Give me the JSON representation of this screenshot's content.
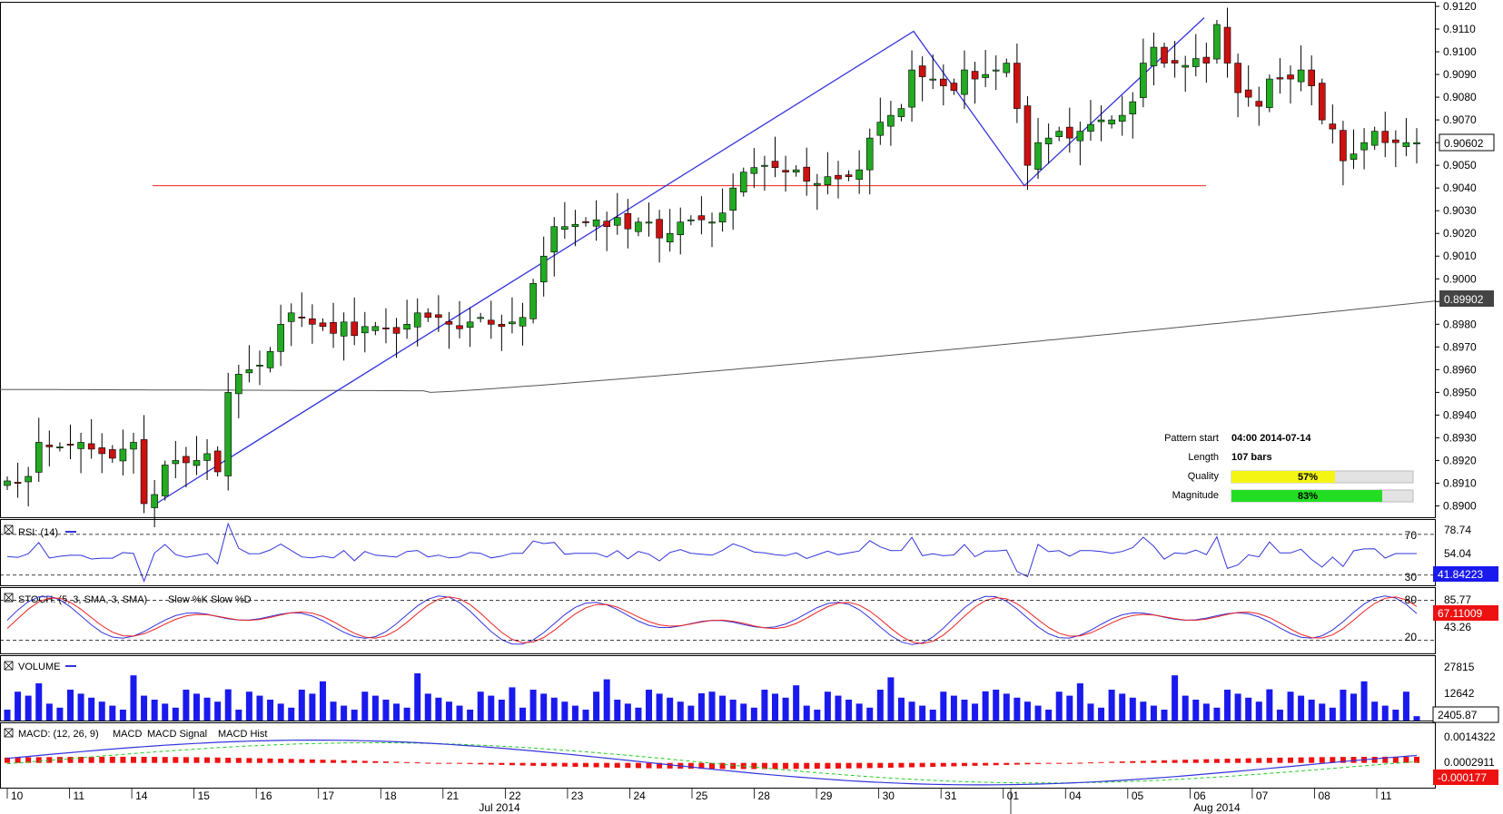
{
  "chart_data": {
    "type": "candlestick",
    "price_panel": {
      "ylim": [
        0.8895,
        0.9122
      ],
      "y_ticks": [
        "0.9120",
        "0.9110",
        "0.9100",
        "0.9090",
        "0.9080",
        "0.9070",
        "0.9060",
        "0.9050",
        "0.9040",
        "0.9030",
        "0.9020",
        "0.9010",
        "0.9000",
        "0.8990",
        "0.8980",
        "0.8970",
        "0.8960",
        "0.8950",
        "0.8940",
        "0.8930",
        "0.8920",
        "0.8910",
        "0.8900"
      ],
      "current_price_label": "0.90602",
      "current_price": 0.90602,
      "ma_label": "0.89902",
      "ma_value": 0.89902,
      "support_level": 0.9041,
      "colors": {
        "up": "#22aa22",
        "down": "#cc1111",
        "ma": "#555555",
        "pattern": "#3333dd",
        "support": "#ee2222"
      },
      "candles_close": [
        0.8911,
        0.891,
        0.8913,
        0.8928,
        0.8926,
        0.8926,
        0.8927,
        0.8928,
        0.8925,
        0.8923,
        0.8921,
        0.8925,
        0.8928,
        0.8901,
        0.8905,
        0.8918,
        0.892,
        0.8919,
        0.892,
        0.8923,
        0.8915,
        0.895,
        0.8958,
        0.896,
        0.8962,
        0.8968,
        0.898,
        0.8985,
        0.8983,
        0.898,
        0.8979,
        0.8976,
        0.8981,
        0.8975,
        0.8979,
        0.8979,
        0.8978,
        0.8976,
        0.898,
        0.8985,
        0.8983,
        0.8983,
        0.898,
        0.8978,
        0.8981,
        0.8983,
        0.898,
        0.8979,
        0.8981,
        0.8983,
        0.8998,
        0.901,
        0.9023,
        0.9023,
        0.9024,
        0.9025,
        0.9026,
        0.9023,
        0.9027,
        0.9022,
        0.9025,
        0.9025,
        0.9018,
        0.902,
        0.9025,
        0.9026,
        0.9026,
        0.9025,
        0.9029,
        0.904,
        0.9047,
        0.9049,
        0.905,
        0.9049,
        0.9047,
        0.9048,
        0.9043,
        0.9042,
        0.9045,
        0.9044,
        0.9045,
        0.9048,
        0.9062,
        0.9069,
        0.9072,
        0.9075,
        0.9092,
        0.9089,
        0.9088,
        0.9085,
        0.9083,
        0.9092,
        0.9088,
        0.909,
        0.9092,
        0.9095,
        0.9075,
        0.905,
        0.906,
        0.9062,
        0.9065,
        0.9062,
        0.9065,
        0.9068,
        0.907,
        0.907,
        0.9072,
        0.9078,
        0.9095,
        0.9102,
        0.9095,
        0.9095,
        0.9094,
        0.9097,
        0.9095,
        0.9112,
        0.9095,
        0.9082,
        0.908,
        0.9076,
        0.9088,
        0.9088,
        0.9088,
        0.9092,
        0.9085,
        0.907,
        0.9066,
        0.9052,
        0.9055,
        0.906,
        0.9065,
        0.906,
        0.906,
        0.906,
        0.906
      ]
    },
    "x_ticks": [
      "10",
      "11",
      "14",
      "15",
      "16",
      "17",
      "18",
      "21",
      "22",
      "23",
      "24",
      "25",
      "28",
      "29",
      "30",
      "31",
      "01",
      "04",
      "05",
      "06",
      "07",
      "08",
      "11"
    ],
    "month_labels": [
      "Jul 2014",
      "Aug 2014"
    ],
    "pattern_info": {
      "pattern_start_label": "Pattern start",
      "pattern_start": "04:00 2014-07-14",
      "length_label": "Length",
      "length": "107 bars",
      "quality_label": "Quality",
      "quality": "57%",
      "quality_value": 0.57,
      "magnitude_label": "Magnitude",
      "magnitude": "83%",
      "magnitude_value": 0.83
    },
    "rsi": {
      "label": "RSI: (14)",
      "y_ticks": [
        "78.74",
        "54.04",
        "30"
      ],
      "level_high": "70",
      "current": "41.84223",
      "ylim": [
        20,
        85
      ]
    },
    "stoch": {
      "label": "STOCH: (5, 3, SMA, 3, SMA)",
      "series_names": [
        "Slow %K",
        "Slow %D"
      ],
      "y_ticks": [
        "85.77",
        "43.26"
      ],
      "level_high": "80",
      "level_low": "20",
      "current": "67.11009",
      "ylim": [
        0,
        100
      ]
    },
    "volume": {
      "label": "VOLUME",
      "y_ticks": [
        "27815",
        "12642"
      ],
      "current": "2405.87",
      "ylim": [
        0,
        32000
      ]
    },
    "macd": {
      "label": "MACD: (12, 26, 9)",
      "series_names": [
        "MACD",
        "MACD Signal",
        "MACD Hist"
      ],
      "y_ticks": [
        "0.0014322",
        "0.0002911"
      ],
      "current": "-0.000177",
      "ylim": [
        -0.0011,
        0.0018
      ]
    }
  }
}
